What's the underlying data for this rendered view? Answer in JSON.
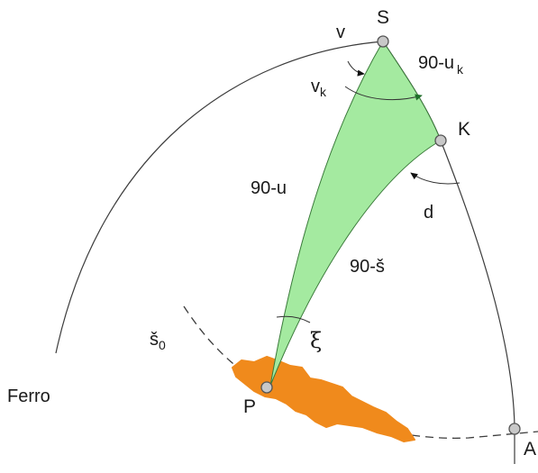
{
  "points": {
    "s": "S",
    "k": "K",
    "p": "P",
    "a": "A"
  },
  "labels": {
    "ferro": "Ferro",
    "v": "v",
    "vk_base": "v",
    "vk_sub": "k",
    "side_90_uk_base": "90-u",
    "side_90_uk_sub": "k",
    "angle_d": "d",
    "side_90_u": "90-u",
    "side_90_s": "90-š",
    "xi": "ξ",
    "s0_base": "š",
    "s0_sub": "0"
  },
  "colors": {
    "triangle_fill": "#a4eaa0",
    "triangle_stroke": "#3a7a3a",
    "region_fill": "#f08a1c",
    "node_fill": "#c8c8c8",
    "arrow_green": "#1f6f2a"
  }
}
